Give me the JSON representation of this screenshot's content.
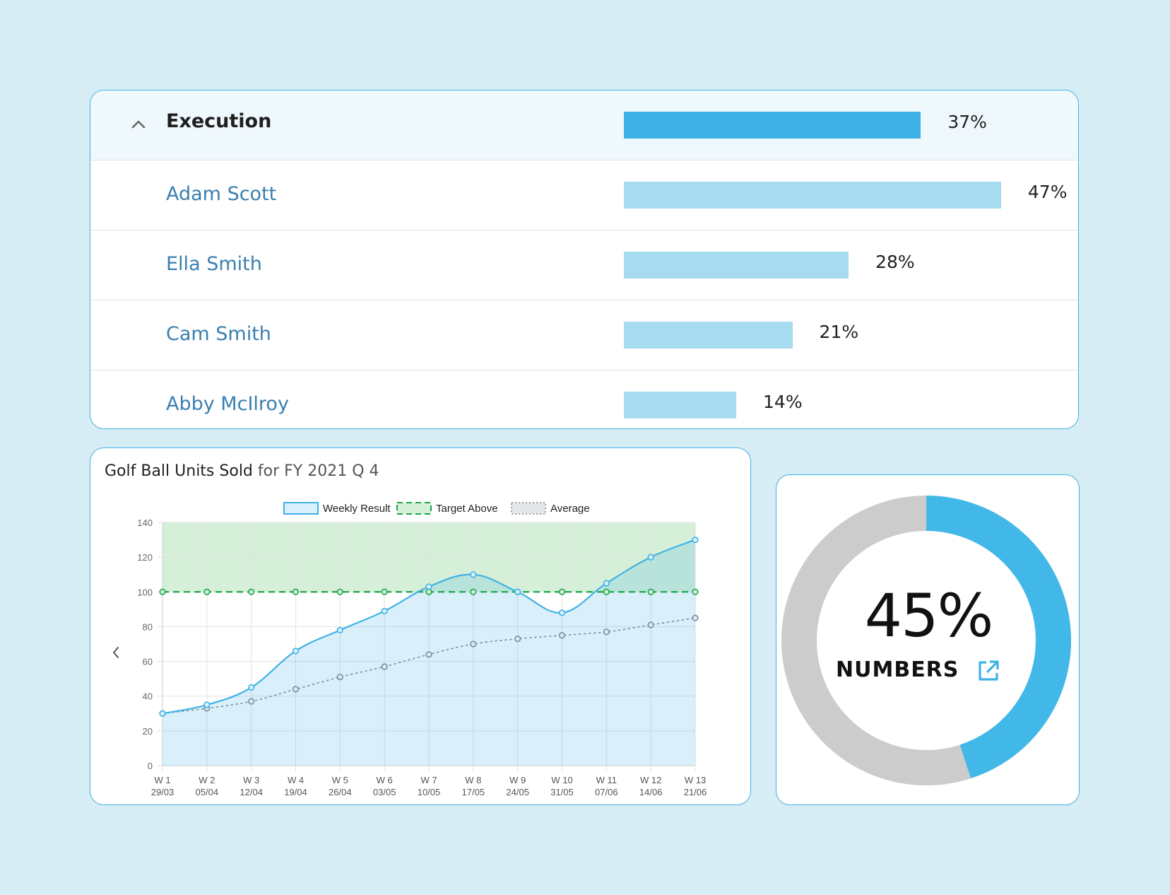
{
  "execution": {
    "title": "Execution",
    "value": 37,
    "value_label": "37%",
    "people": [
      {
        "name": "Adam Scott",
        "value": 47,
        "value_label": "47%"
      },
      {
        "name": "Ella Smith",
        "value": 28,
        "value_label": "28%"
      },
      {
        "name": "Cam Smith",
        "value": 21,
        "value_label": "21%"
      },
      {
        "name": "Abby McIlroy",
        "value": 14,
        "value_label": "14%"
      }
    ]
  },
  "chart": {
    "title_main": "Golf Ball Units Sold",
    "title_rest": " for FY 2021 Q 4"
  },
  "chart_data": {
    "type": "line",
    "title": "Golf Ball Units Sold for FY 2021 Q 4",
    "legend": [
      "Weekly Result",
      "Target Above",
      "Average"
    ],
    "legend_position": "top",
    "x": [
      "W 1 29/03",
      "W 2 05/04",
      "W 3 12/04",
      "W 4 19/04",
      "W 5 26/04",
      "W 6 03/05",
      "W 7 10/05",
      "W 8 17/05",
      "W 9 24/05",
      "W 10 31/05",
      "W 11 07/06",
      "W 12 14/06",
      "W 13 21/06"
    ],
    "x_ticks": [
      [
        "W 1",
        "29/03"
      ],
      [
        "W 2",
        "05/04"
      ],
      [
        "W 3",
        "12/04"
      ],
      [
        "W 4",
        "19/04"
      ],
      [
        "W 5",
        "26/04"
      ],
      [
        "W 6",
        "03/05"
      ],
      [
        "W 7",
        "10/05"
      ],
      [
        "W 8",
        "17/05"
      ],
      [
        "W 9",
        "24/05"
      ],
      [
        "W 10",
        "31/05"
      ],
      [
        "W 11",
        "07/06"
      ],
      [
        "W 12",
        "14/06"
      ],
      [
        "W 13",
        "21/06"
      ]
    ],
    "series": [
      {
        "name": "Weekly Result",
        "values": [
          30,
          35,
          45,
          66,
          78,
          89,
          103,
          110,
          100,
          88,
          105,
          120,
          130
        ],
        "color": "#3fb2e5"
      },
      {
        "name": "Target Above",
        "values": [
          100,
          100,
          100,
          100,
          100,
          100,
          100,
          100,
          100,
          100,
          100,
          100,
          100
        ],
        "color": "#1aa84a"
      },
      {
        "name": "Average",
        "values": [
          30,
          33,
          37,
          44,
          51,
          57,
          64,
          70,
          73,
          75,
          77,
          81,
          85
        ],
        "color": "#7a8ea4"
      }
    ],
    "ylim": [
      0,
      140
    ],
    "y_ticks": [
      0,
      20,
      40,
      60,
      80,
      100,
      120,
      140
    ],
    "grid": true
  },
  "donut": {
    "value": 45,
    "value_label": "45%",
    "label": "NUMBERS",
    "colors": {
      "fill": "#42b8e8",
      "track": "#cccccc"
    }
  },
  "icons": [
    "chevron-up-icon",
    "chevron-left-icon",
    "external-link-icon"
  ]
}
